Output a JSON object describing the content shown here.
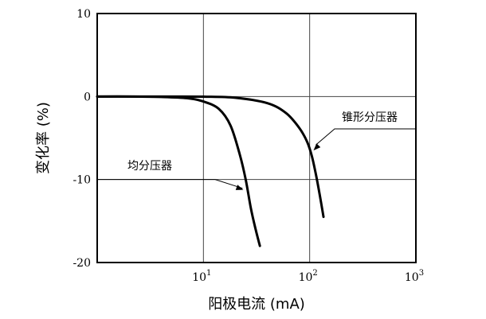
{
  "chart_data": {
    "type": "line",
    "title": "",
    "xlabel": "阳极电流 (mA)",
    "ylabel": "变化率 (%)",
    "x_scale": "log",
    "xlim": [
      1,
      1000
    ],
    "ylim": [
      -20,
      10
    ],
    "grid": true,
    "x_ticks": [
      {
        "base": "10",
        "exp": "1",
        "value": 10
      },
      {
        "base": "10",
        "exp": "2",
        "value": 100
      },
      {
        "base": "10",
        "exp": "3",
        "value": 1000
      }
    ],
    "y_ticks": [
      {
        "label": "10",
        "value": 10
      },
      {
        "label": "0",
        "value": 0
      },
      {
        "label": "-10",
        "value": -10
      },
      {
        "label": "-20",
        "value": -20
      }
    ],
    "series": [
      {
        "name": "均分压器",
        "points": [
          [
            1,
            0
          ],
          [
            2,
            0
          ],
          [
            4,
            -0.05
          ],
          [
            7,
            -0.2
          ],
          [
            10,
            -0.6
          ],
          [
            14,
            -1.5
          ],
          [
            18,
            -3.5
          ],
          [
            22,
            -7
          ],
          [
            25,
            -10
          ],
          [
            28,
            -13.5
          ],
          [
            31,
            -16
          ],
          [
            34,
            -18
          ]
        ]
      },
      {
        "name": "锥形分压器",
        "points": [
          [
            1,
            0
          ],
          [
            5,
            0
          ],
          [
            10,
            -0.02
          ],
          [
            20,
            -0.15
          ],
          [
            40,
            -0.8
          ],
          [
            60,
            -2
          ],
          [
            80,
            -3.8
          ],
          [
            95,
            -5.5
          ],
          [
            105,
            -7.2
          ],
          [
            115,
            -9.5
          ],
          [
            125,
            -12
          ],
          [
            135,
            -14.5
          ]
        ]
      }
    ],
    "annotations": [
      {
        "text": "均分压器",
        "series": 0,
        "x": 25,
        "y": -10
      },
      {
        "text": "锥形分压器",
        "series": 1,
        "x": 105,
        "y": -6.5
      }
    ]
  }
}
